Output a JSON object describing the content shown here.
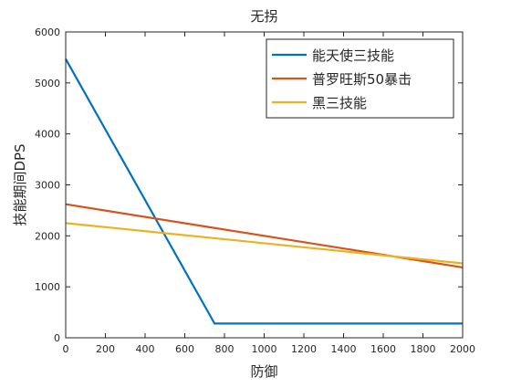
{
  "chart_data": {
    "type": "line",
    "title": "无拐",
    "xlabel": "防御",
    "ylabel": "技能期间DPS",
    "xlim": [
      0,
      2000
    ],
    "ylim": [
      0,
      6000
    ],
    "xticks": [
      0,
      200,
      400,
      600,
      800,
      1000,
      1200,
      1400,
      1600,
      1800,
      2000
    ],
    "yticks": [
      0,
      1000,
      2000,
      3000,
      4000,
      5000,
      6000
    ],
    "grid": false,
    "legend_position": "top-right",
    "series": [
      {
        "name": "能天使三技能",
        "color": "#0072BD",
        "x": [
          0,
          750,
          2000
        ],
        "y": [
          5470,
          280,
          280
        ]
      },
      {
        "name": "普罗旺斯50暴击",
        "color": "#D95319",
        "x": [
          0,
          2000
        ],
        "y": [
          2620,
          1380
        ]
      },
      {
        "name": "黑三技能",
        "color": "#EDB120",
        "x": [
          0,
          2000
        ],
        "y": [
          2250,
          1460
        ]
      }
    ]
  }
}
